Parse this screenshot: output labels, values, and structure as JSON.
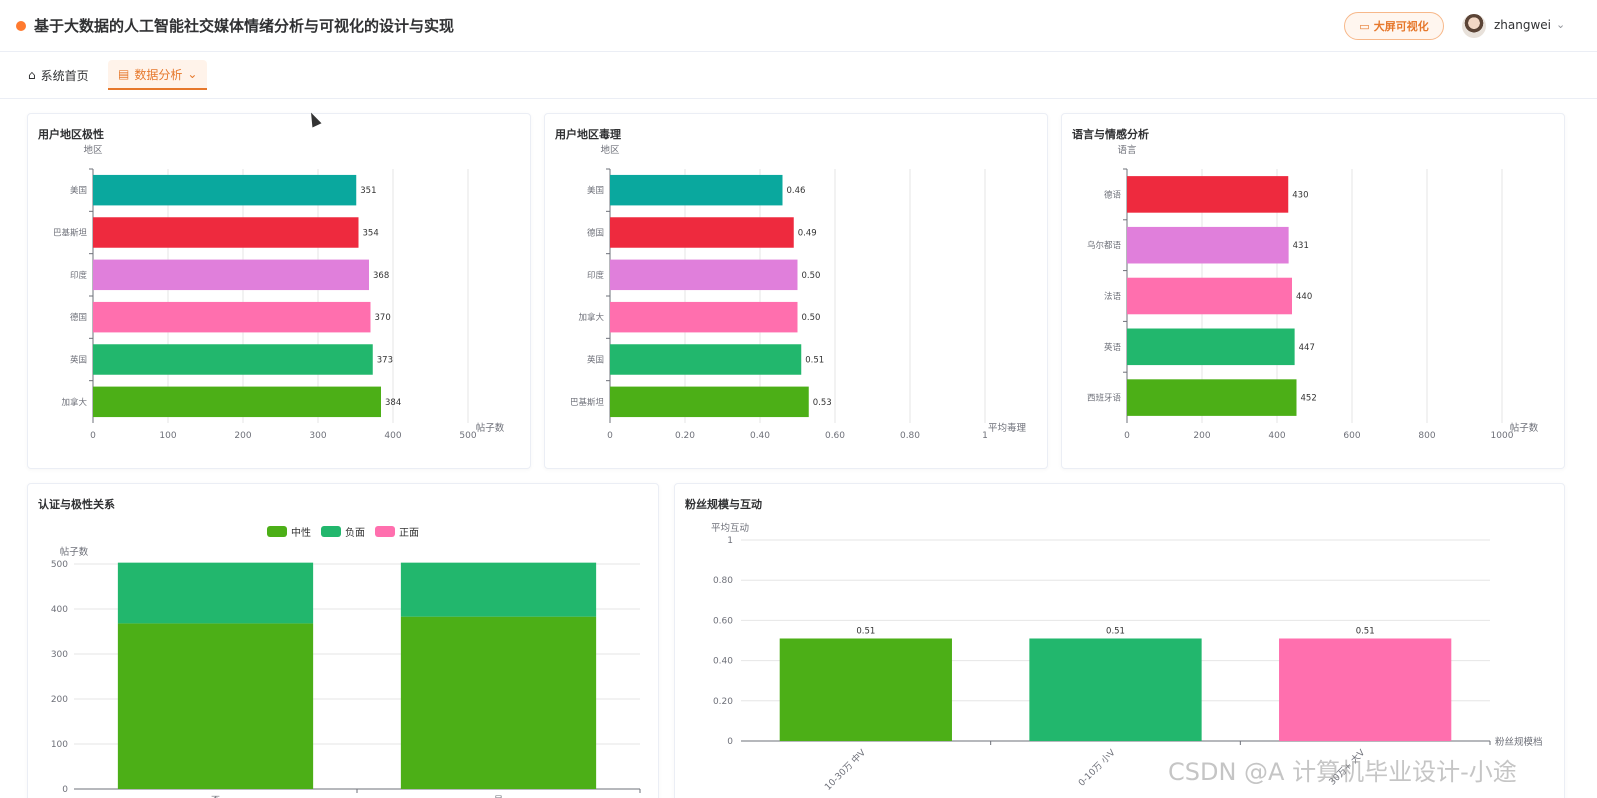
{
  "header": {
    "title": "基于大数据的人工智能社交媒体情绪分析与可视化的设计与实现",
    "screen_button": "大屏可视化",
    "username": "zhangwei"
  },
  "nav": {
    "home": "系统首页",
    "analysis": "数据分析"
  },
  "watermark": "CSDN @A 计算机毕业设计-小途",
  "colors": {
    "accent": "#e6782c",
    "teal": "#0aa89e",
    "red": "#ee2a3e",
    "violet": "#e07fdb",
    "pink": "#ff6fae",
    "green": "#22b76d",
    "lime": "#4caf17"
  },
  "chart_data": [
    {
      "id": "region_polarity",
      "type": "bar",
      "orientation": "horizontal",
      "title": "用户地区极性",
      "ylabel": "地区",
      "xlabel": "帖子数",
      "categories": [
        "美国",
        "巴基斯坦",
        "印度",
        "德国",
        "英国",
        "加拿大"
      ],
      "values": [
        351,
        354,
        368,
        370,
        373,
        384
      ],
      "value_labels": [
        "351",
        "354",
        "368",
        "370",
        "373",
        "384"
      ],
      "bar_colors": [
        "#0aa89e",
        "#ee2a3e",
        "#e07fdb",
        "#ff6fae",
        "#22b76d",
        "#4caf17"
      ],
      "xlim": [
        0,
        500
      ],
      "xticks": [
        "0",
        "100",
        "200",
        "300",
        "400",
        "500"
      ]
    },
    {
      "id": "region_toxicity",
      "type": "bar",
      "orientation": "horizontal",
      "title": "用户地区毒理",
      "ylabel": "地区",
      "xlabel": "平均毒理",
      "categories": [
        "美国",
        "德国",
        "印度",
        "加拿大",
        "英国",
        "巴基斯坦"
      ],
      "values": [
        0.46,
        0.49,
        0.5,
        0.5,
        0.51,
        0.53
      ],
      "value_labels": [
        "0.46",
        "0.49",
        "0.50",
        "0.50",
        "0.51",
        "0.53"
      ],
      "bar_colors": [
        "#0aa89e",
        "#ee2a3e",
        "#e07fdb",
        "#ff6fae",
        "#22b76d",
        "#4caf17"
      ],
      "xlim": [
        0,
        1
      ],
      "xticks": [
        "0",
        "0.20",
        "0.40",
        "0.60",
        "0.80",
        "1"
      ]
    },
    {
      "id": "language_sentiment",
      "type": "bar",
      "orientation": "horizontal",
      "title": "语言与情感分析",
      "ylabel": "语言",
      "xlabel": "帖子数",
      "categories": [
        "德语",
        "乌尔都语",
        "法语",
        "英语",
        "西班牙语"
      ],
      "values": [
        430,
        431,
        440,
        447,
        452
      ],
      "value_labels": [
        "430",
        "431",
        "440",
        "447",
        "452"
      ],
      "bar_colors": [
        "#ee2a3e",
        "#e07fdb",
        "#ff6fae",
        "#22b76d",
        "#4caf17"
      ],
      "xlim": [
        0,
        1000
      ],
      "xticks": [
        "0",
        "200",
        "400",
        "600",
        "800",
        "1000"
      ]
    },
    {
      "id": "verification_polarity",
      "type": "bar",
      "stacked": true,
      "title": "认证与极性关系",
      "ylabel": "帖子数",
      "categories": [
        "否",
        "是"
      ],
      "series": [
        {
          "name": "中性",
          "color": "#4caf17",
          "values": [
            368,
            383
          ]
        },
        {
          "name": "负面",
          "color": "#22b76d",
          "values": [
            135,
            120
          ]
        },
        {
          "name": "正面",
          "color": "#ff6fae",
          "values": [
            0,
            0
          ]
        }
      ],
      "ylim": [
        0,
        500
      ],
      "yticks": [
        "0",
        "100",
        "200",
        "300",
        "400",
        "500"
      ],
      "legend": "top-center"
    },
    {
      "id": "follower_interaction",
      "type": "bar",
      "title": "粉丝规模与互动",
      "ylabel": "平均互动",
      "xlabel": "粉丝规模档",
      "categories": [
        "10-30万 中V",
        "0-10万 小V",
        "30万+ 大V"
      ],
      "values": [
        0.51,
        0.51,
        0.51
      ],
      "value_labels": [
        "0.51",
        "0.51",
        "0.51"
      ],
      "bar_colors": [
        "#4caf17",
        "#22b76d",
        "#ff6fae"
      ],
      "ylim": [
        0,
        1
      ],
      "yticks": [
        "0",
        "0.20",
        "0.40",
        "0.60",
        "0.80",
        "1"
      ]
    }
  ]
}
